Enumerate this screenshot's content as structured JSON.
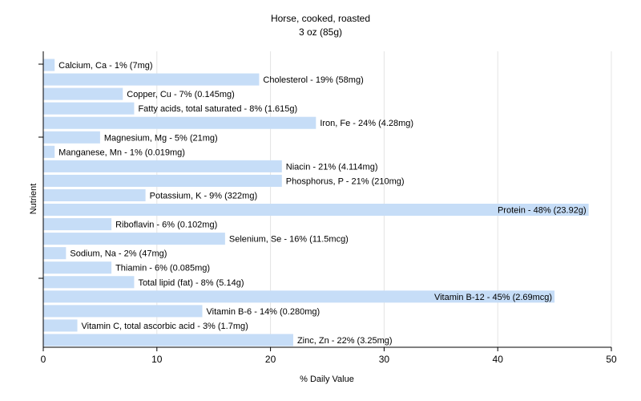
{
  "chart_data": {
    "type": "bar",
    "orientation": "horizontal",
    "title": "Horse, cooked, roasted",
    "subtitle": "3 oz (85g)",
    "xlabel": "% Daily Value",
    "ylabel": "Nutrient",
    "xlim": [
      0,
      50
    ],
    "xticks": [
      "0",
      "10",
      "20",
      "30",
      "40",
      "50"
    ],
    "grid": true,
    "bar_color": "#c6ddf7",
    "categories": [
      "Calcium, Ca",
      "Cholesterol",
      "Copper, Cu",
      "Fatty acids, total saturated",
      "Iron, Fe",
      "Magnesium, Mg",
      "Manganese, Mn",
      "Niacin",
      "Phosphorus, P",
      "Potassium, K",
      "Protein",
      "Riboflavin",
      "Selenium, Se",
      "Sodium, Na",
      "Thiamin",
      "Total lipid (fat)",
      "Vitamin B-12",
      "Vitamin B-6",
      "Vitamin C, total ascorbic acid",
      "Zinc, Zn"
    ],
    "values": [
      1,
      19,
      7,
      8,
      24,
      5,
      1,
      21,
      21,
      9,
      48,
      6,
      16,
      2,
      6,
      8,
      45,
      14,
      3,
      22
    ],
    "labels": [
      "Calcium, Ca - 1% (7mg)",
      "Cholesterol - 19% (58mg)",
      "Copper, Cu - 7% (0.145mg)",
      "Fatty acids, total saturated - 8% (1.615g)",
      "Iron, Fe - 24% (4.28mg)",
      "Magnesium, Mg - 5% (21mg)",
      "Manganese, Mn - 1% (0.019mg)",
      "Niacin - 21% (4.114mg)",
      "Phosphorus, P - 21% (210mg)",
      "Potassium, K - 9% (322mg)",
      "Protein - 48% (23.92g)",
      "Riboflavin - 6% (0.102mg)",
      "Selenium, Se - 16% (11.5mcg)",
      "Sodium, Na - 2% (47mg)",
      "Thiamin - 6% (0.085mg)",
      "Total lipid (fat) - 8% (5.14g)",
      "Vitamin B-12 - 45% (2.69mcg)",
      "Vitamin B-6 - 14% (0.280mg)",
      "Vitamin C, total ascorbic acid - 3% (1.7mg)",
      "Zinc, Zn - 22% (3.25mg)"
    ]
  }
}
